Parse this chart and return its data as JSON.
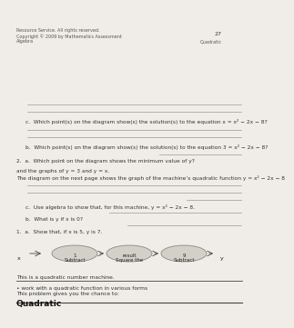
{
  "title": "Quadratic",
  "subtitle_line1": "This problem gives you the chance to:",
  "subtitle_line2": "• work with a quadratic function in various forms",
  "intro_text": "This is a quadratic number machine.",
  "machine_labels": [
    "Subtract\n1",
    "Square the\nresult",
    "Subtract\n9"
  ],
  "x_label": "x",
  "y_label": "y",
  "q1a": "1.  a.  Show that, if x is 5, y is 7.",
  "q1b": "b.  What is y if x is 0?",
  "q1c": "c.  Use algebra to show that, for this machine, y = x² − 2x − 8.",
  "transition_text1": "The diagram on the next page shows the graph of the machine’s quadratic function y = x² − 2x − 8",
  "transition_text2": "and the graphs of y = 3 and y = x.",
  "q2a": "2.  a.  Which point on the diagram shows the minimum value of y?",
  "q2b": "b.  Which point(s) on the diagram show(s) the solution(s) to the equation 3 = x² − 2x − 8?",
  "q2c": "c.  Which point(s) on the diagram show(s) the solution(s) to the equation x = x² − 2x − 8?",
  "footer_left_line1": "Algebra",
  "footer_left_line2": "Copyright © 2009 by Mathematics Assessment",
  "footer_left_line3": "Resource Service. All rights reserved.",
  "footer_right_top": "Quadratic",
  "footer_right_bottom": "27",
  "bg_color": "#f0ede8",
  "ellipse_color": "#d4d0c8",
  "text_color": "#2a2a2a",
  "line_color": "#999999",
  "header_line_color": "#444444"
}
